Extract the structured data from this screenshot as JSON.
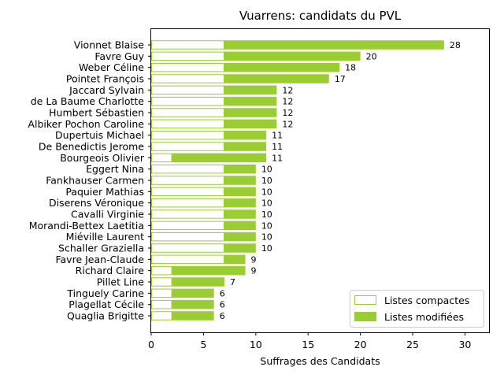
{
  "chart_data": {
    "type": "bar",
    "orientation": "horizontal",
    "stacked": true,
    "title": "Vuarrens: candidats du PVL",
    "xlabel": "Suffrages des Candidats",
    "ylabel": "",
    "xlim": [
      0,
      32.3
    ],
    "xticks": [
      0,
      5,
      10,
      15,
      20,
      25,
      30
    ],
    "grid": false,
    "legend_position": "bottom-right",
    "colors": {
      "modified": "#9acd32",
      "compact_edge": "#9acd32",
      "compact_fill": "#ffffff"
    },
    "categories": [
      "Vionnet Blaise",
      "Favre Guy",
      "Weber Céline",
      "Pointet François",
      "Jaccard Sylvain",
      "de La Baume Charlotte",
      "Humbert Sébastien",
      "Albiker Pochon Caroline",
      "Dupertuis Michael",
      "De Benedictis Jerome",
      "Bourgeois Olivier",
      "Eggert Nina",
      "Fankhauser Carmen",
      "Paquier Mathias",
      "Diserens Véronique",
      "Cavalli Virginie",
      "Morandi-Bettex Laetitia",
      "Miéville Laurent",
      "Schaller Graziella",
      "Favre Jean-Claude",
      "Richard Claire",
      "Pillet Line",
      "Tinguely Carine",
      "Plagellat Cécile",
      "Quaglia Brigitte"
    ],
    "series": [
      {
        "name": "Listes compactes",
        "values": [
          7,
          7,
          7,
          7,
          7,
          7,
          7,
          7,
          7,
          7,
          2,
          7,
          7,
          7,
          7,
          7,
          7,
          7,
          7,
          7,
          2,
          2,
          2,
          2,
          2
        ]
      },
      {
        "name": "Listes modifiées",
        "values": [
          21,
          13,
          11,
          10,
          5,
          5,
          5,
          5,
          4,
          4,
          9,
          3,
          3,
          3,
          3,
          3,
          3,
          3,
          3,
          2,
          7,
          5,
          4,
          4,
          4
        ]
      }
    ],
    "totals": [
      28,
      20,
      18,
      17,
      12,
      12,
      12,
      12,
      11,
      11,
      11,
      10,
      10,
      10,
      10,
      10,
      10,
      10,
      10,
      9,
      9,
      7,
      6,
      6,
      6
    ]
  }
}
